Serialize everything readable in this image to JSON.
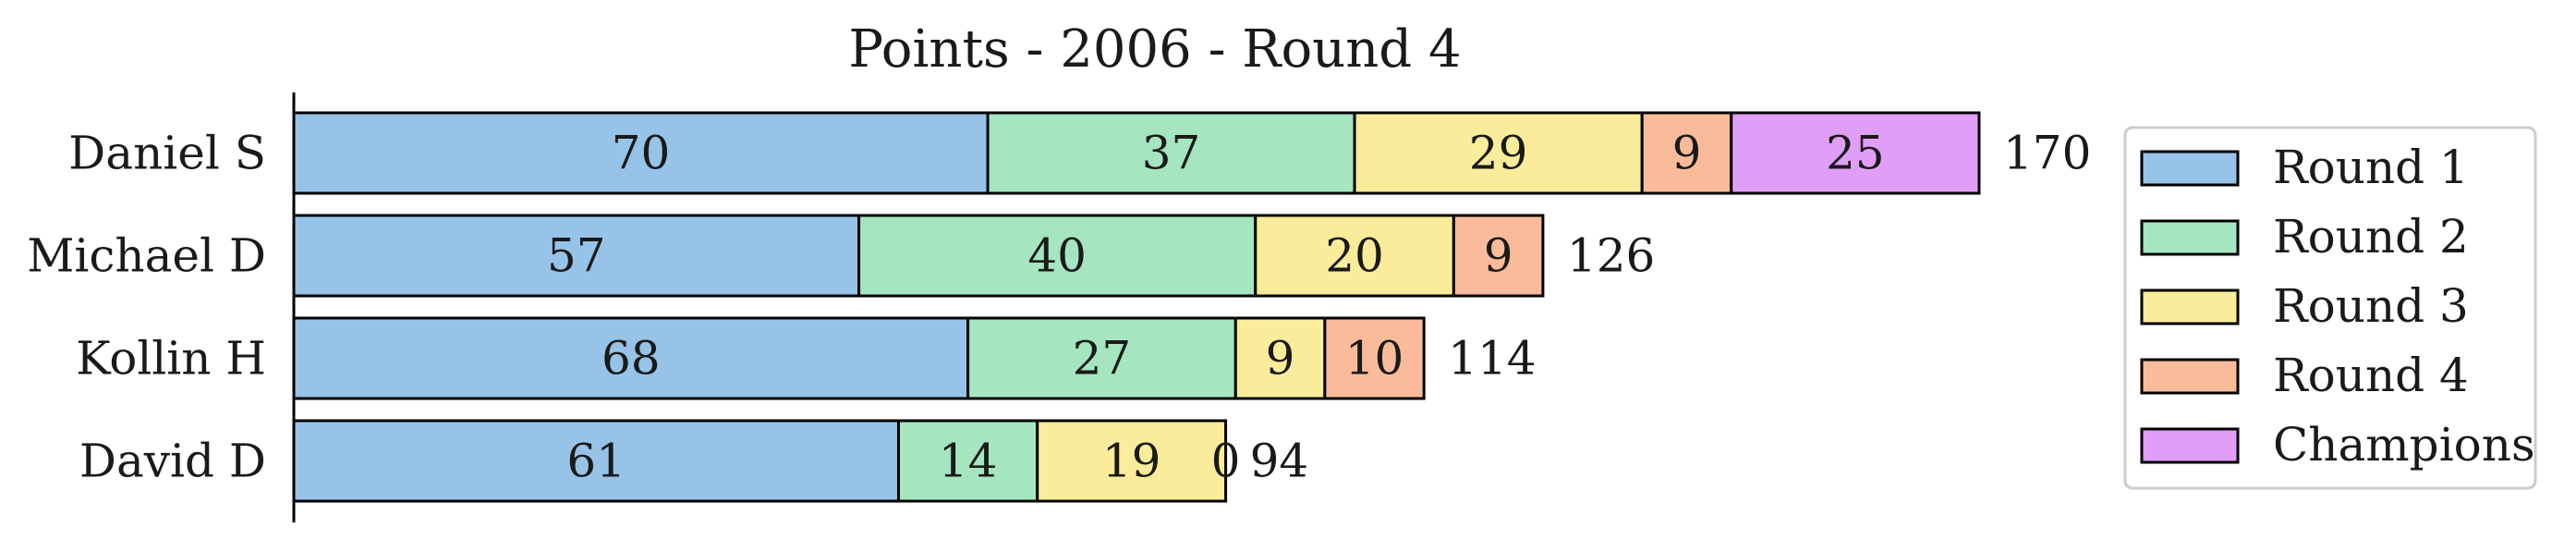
{
  "chart_data": {
    "type": "bar",
    "orientation": "horizontal",
    "stacked": true,
    "title": "Points - 2006 - Round 4",
    "xlabel": "",
    "ylabel": "",
    "categories": [
      "Daniel S",
      "Michael D",
      "Kollin H",
      "David D"
    ],
    "series": [
      {
        "name": "Round 1",
        "color": "#97c3e8",
        "values": [
          70,
          57,
          68,
          61
        ]
      },
      {
        "name": "Round 2",
        "color": "#a5e6c0",
        "values": [
          37,
          40,
          27,
          14
        ]
      },
      {
        "name": "Round 3",
        "color": "#fbec9b",
        "values": [
          29,
          20,
          9,
          19
        ]
      },
      {
        "name": "Round 4",
        "color": "#f9bb99",
        "values": [
          9,
          9,
          10,
          0
        ]
      },
      {
        "name": "Champions",
        "color": "#e19ef7",
        "values": [
          25,
          0,
          0,
          0
        ]
      }
    ],
    "totals": [
      170,
      126,
      114,
      94
    ],
    "xlim": [
      0,
      170
    ],
    "grid": false,
    "legend_position": "right"
  }
}
